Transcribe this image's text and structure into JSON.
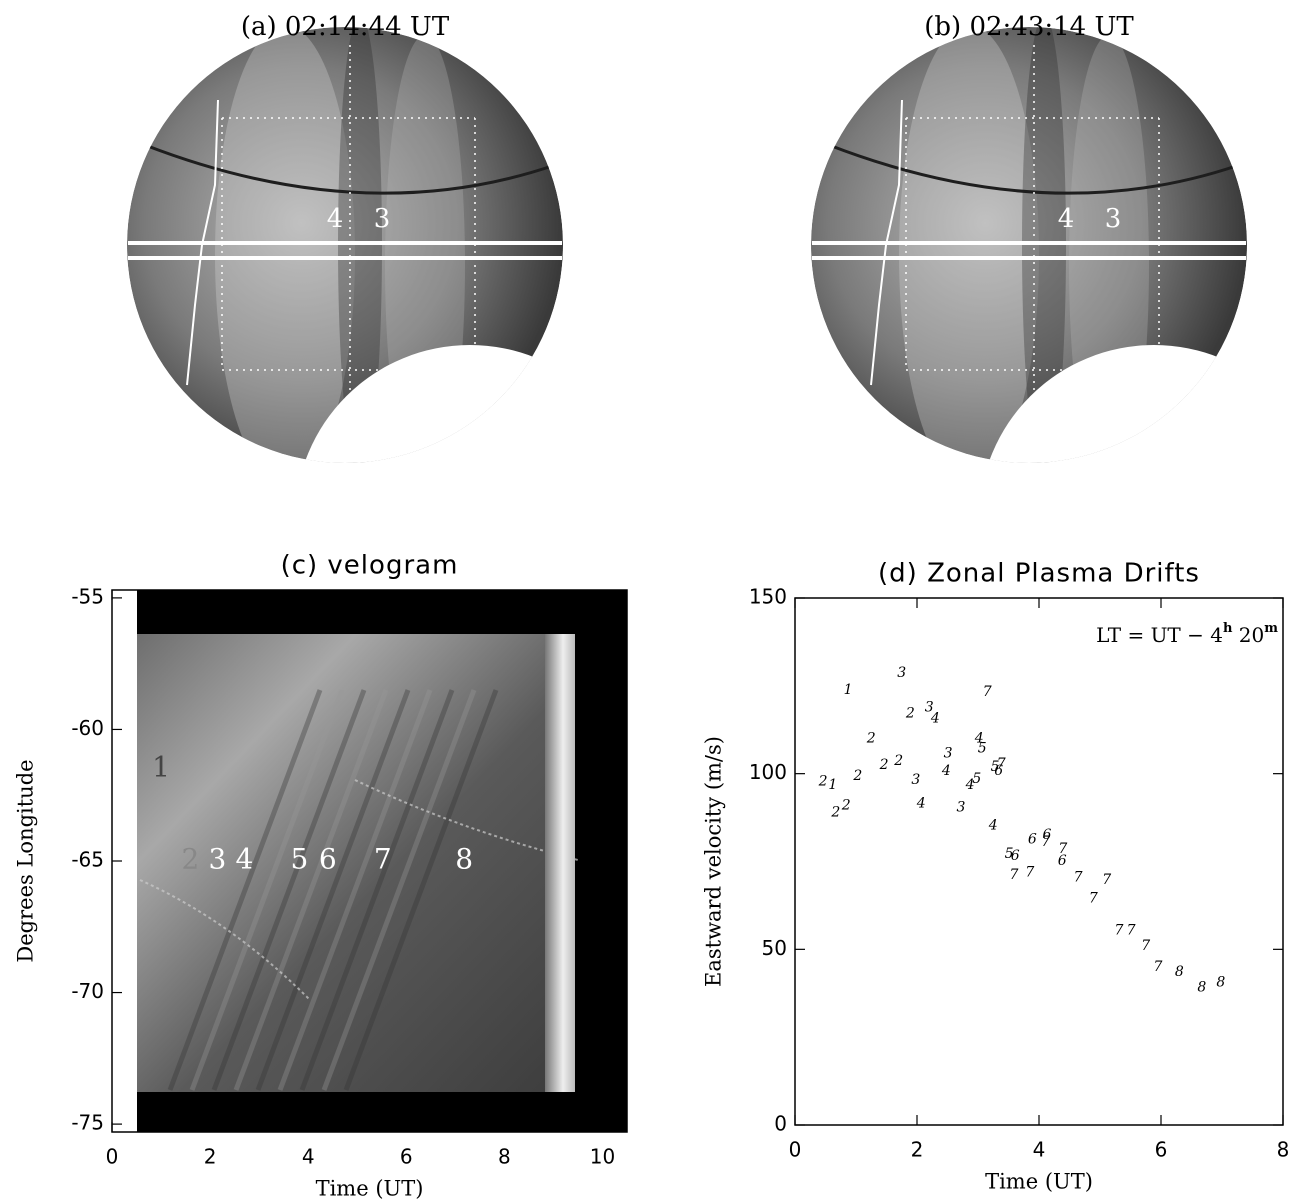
{
  "chart_data": [
    {
      "type": "image",
      "title": "(a) 02:14:44 UT",
      "labels": [
        "4",
        "3"
      ]
    },
    {
      "type": "image",
      "title": "(b) 02:43:14 UT",
      "labels": [
        "4",
        "3"
      ]
    },
    {
      "type": "heatmap",
      "title": "(c) velogram",
      "x_label": "Time (UT)",
      "y_label": "Degrees Longitude",
      "xlim": [
        0,
        10.5
      ],
      "ylim": [
        -75.3,
        -54.7
      ],
      "xticks": [
        0,
        2,
        4,
        6,
        8,
        10
      ],
      "yticks": [
        -55,
        -60,
        -65,
        -70,
        -75
      ],
      "annotations": [
        {
          "text": "1",
          "x": 1.0,
          "y": -61.5
        },
        {
          "text": "2",
          "x": 1.6,
          "y": -65
        },
        {
          "text": "3",
          "x": 2.15,
          "y": -65
        },
        {
          "text": "4",
          "x": 2.7,
          "y": -65
        },
        {
          "text": "5",
          "x": 3.82,
          "y": -65
        },
        {
          "text": "6",
          "x": 4.4,
          "y": -65
        },
        {
          "text": "7",
          "x": 5.52,
          "y": -65
        },
        {
          "text": "8",
          "x": 7.18,
          "y": -65
        }
      ]
    },
    {
      "type": "scatter",
      "title": "(d) Zonal Plasma Drifts",
      "x_label": "Time (UT)",
      "y_label": "Eastward velocity (m/s)",
      "annotation": [
        "LT = UT − 4",
        "h",
        " 20",
        "m"
      ],
      "xlim": [
        0,
        8
      ],
      "ylim": [
        0,
        150
      ],
      "xticks": [
        0,
        2,
        4,
        6,
        8
      ],
      "yticks": [
        0,
        50,
        100,
        150
      ],
      "series": [
        {
          "color": "#000000",
          "labels": [
            "1",
            "3",
            "7",
            "2",
            "3",
            "4",
            "2",
            "4",
            "5",
            "3",
            "2",
            "1",
            "2",
            "2",
            "2",
            "3",
            "4",
            "5",
            "7",
            "6",
            "5",
            "4",
            "2",
            "2",
            "4",
            "3",
            "4",
            "6",
            "6",
            "7",
            "7",
            "6",
            "5",
            "6",
            "7",
            "7",
            "7",
            "7",
            "7",
            "7",
            "7",
            "7",
            "7",
            "8",
            "8",
            "8"
          ],
          "x": [
            0.87,
            1.75,
            3.15,
            1.89,
            2.2,
            2.3,
            1.25,
            3.02,
            3.07,
            2.51,
            0.46,
            0.62,
            1.03,
            1.46,
            1.7,
            1.98,
            2.48,
            3.28,
            3.38,
            3.34,
            2.98,
            2.87,
            0.67,
            0.84,
            2.07,
            2.72,
            3.25,
            3.89,
            4.13,
            4.11,
            4.39,
            4.38,
            3.51,
            3.61,
            3.59,
            3.85,
            4.64,
            5.11,
            4.89,
            5.31,
            5.51,
            5.75,
            5.95,
            6.3,
            6.67,
            6.98
          ],
          "values": [
            123.8,
            128.6,
            123.3,
            117.1,
            118.8,
            115.7,
            110.0,
            110.0,
            107.2,
            105.8,
            97.7,
            96.8,
            99.4,
            102.4,
            103.6,
            98.2,
            100.8,
            101.9,
            102.7,
            100.8,
            98.5,
            96.8,
            88.9,
            90.9,
            91.5,
            90.3,
            85.3,
            81.3,
            82.5,
            80.5,
            78.5,
            75.1,
            77.1,
            76.6,
            71.2,
            71.8,
            70.4,
            69.8,
            64.5,
            55.4,
            55.4,
            50.9,
            45.0,
            43.6,
            39.1,
            40.5
          ]
        }
      ]
    }
  ]
}
